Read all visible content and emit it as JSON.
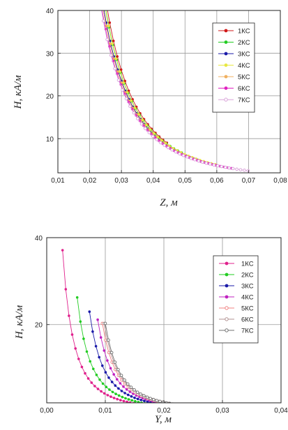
{
  "chart_data": [
    {
      "type": "scatter",
      "xlabel": "Z, м",
      "ylabel": "H, кА/м",
      "xlim": [
        0.01,
        0.08
      ],
      "ylim": [
        2,
        40
      ],
      "xticks": [
        {
          "v": 0.01,
          "label": "0,01"
        },
        {
          "v": 0.02,
          "label": "0,02"
        },
        {
          "v": 0.03,
          "label": "0,03"
        },
        {
          "v": 0.04,
          "label": "0,04"
        },
        {
          "v": 0.05,
          "label": "0,05"
        },
        {
          "v": 0.06,
          "label": "0,06"
        },
        {
          "v": 0.07,
          "label": "0,07"
        },
        {
          "v": 0.08,
          "label": "0,08"
        }
      ],
      "yticks": [
        {
          "v": 10,
          "label": "10"
        },
        {
          "v": 20,
          "label": "20"
        },
        {
          "v": 30,
          "label": "30"
        },
        {
          "v": 40,
          "label": "40"
        }
      ],
      "grid": true,
      "legend_position": "top-right",
      "x_step": 0.0012,
      "series": [
        {
          "name": "1КС",
          "color": "#d01818",
          "marker": "circle",
          "x_start": 0.0095,
          "x_end": 0.045,
          "a": 0.1,
          "x0": 0.0014,
          "n": 2.6
        },
        {
          "name": "2КС",
          "color": "#22cc22",
          "marker": "circle",
          "x_start": 0.0105,
          "x_end": 0.05,
          "a": 0.1,
          "x0": 0.0009,
          "n": 2.6
        },
        {
          "name": "3КС",
          "color": "#1a1aa8",
          "marker": "circle",
          "x_start": 0.012,
          "x_end": 0.055,
          "a": 0.1,
          "x0": 0.0003,
          "n": 2.6
        },
        {
          "name": "4КС",
          "color": "#e8e840",
          "marker": "circle",
          "x_start": 0.0115,
          "x_end": 0.06,
          "a": 0.1,
          "x0": 0.0008,
          "n": 2.6
        },
        {
          "name": "5КС",
          "color": "#f0b060",
          "marker": "circle",
          "x_start": 0.012,
          "x_end": 0.06,
          "a": 0.1,
          "x0": 0.0001,
          "n": 2.6
        },
        {
          "name": "6КС",
          "color": "#e020c0",
          "marker": "circle",
          "x_start": 0.013,
          "x_end": 0.065,
          "a": 0.1,
          "x0": -0.0003,
          "n": 2.6
        },
        {
          "name": "7КС",
          "color": "#d8a0d8",
          "marker": "open",
          "x_start": 0.0135,
          "x_end": 0.07,
          "a": 0.1,
          "x0": -0.0005,
          "n": 2.6
        }
      ]
    },
    {
      "type": "scatter",
      "xlabel": "Y, м",
      "ylabel": "H, кА/м",
      "xlim": [
        0.0,
        0.04
      ],
      "ylim": [
        2,
        40
      ],
      "xticks": [
        {
          "v": 0.0,
          "label": "0,00"
        },
        {
          "v": 0.01,
          "label": "0,01"
        },
        {
          "v": 0.02,
          "label": "0,02"
        },
        {
          "v": 0.03,
          "label": "0,03"
        },
        {
          "v": 0.04,
          "label": "0,04"
        }
      ],
      "yticks": [
        {
          "v": 20,
          "label": "20"
        },
        {
          "v": 40,
          "label": "40"
        }
      ],
      "grid": true,
      "legend_position": "top-right",
      "x_step": 0.00055,
      "series": [
        {
          "name": "1КС",
          "color": "#e0208c",
          "marker": "circle",
          "x_start": 0.0027,
          "x_end": 0.034,
          "a": 0.0218,
          "x0": -0.0012,
          "n": 2.1
        },
        {
          "name": "2КС",
          "color": "#22cc22",
          "marker": "circle",
          "x_start": 0.0052,
          "x_end": 0.036,
          "a": 0.0218,
          "x0": 0.0006,
          "n": 2.1
        },
        {
          "name": "3КС",
          "color": "#1a1aa8",
          "marker": "circle",
          "x_start": 0.0073,
          "x_end": 0.038,
          "a": 0.0218,
          "x0": 0.0024,
          "n": 2.1
        },
        {
          "name": "4КС",
          "color": "#c020c0",
          "marker": "circle",
          "x_start": 0.0087,
          "x_end": 0.04,
          "a": 0.0218,
          "x0": 0.0036,
          "n": 2.1
        },
        {
          "name": "5КС",
          "color": "#f08080",
          "marker": "open",
          "x_start": 0.0095,
          "x_end": 0.04,
          "a": 0.0218,
          "x0": 0.0043,
          "n": 2.1
        },
        {
          "name": "6КС",
          "color": "#b09090",
          "marker": "open",
          "x_start": 0.0098,
          "x_end": 0.04,
          "a": 0.0218,
          "x0": 0.0046,
          "n": 2.1
        },
        {
          "name": "7КС",
          "color": "#707070",
          "marker": "open",
          "x_start": 0.01,
          "x_end": 0.04,
          "a": 0.0218,
          "x0": 0.0048,
          "n": 2.1
        }
      ]
    }
  ]
}
